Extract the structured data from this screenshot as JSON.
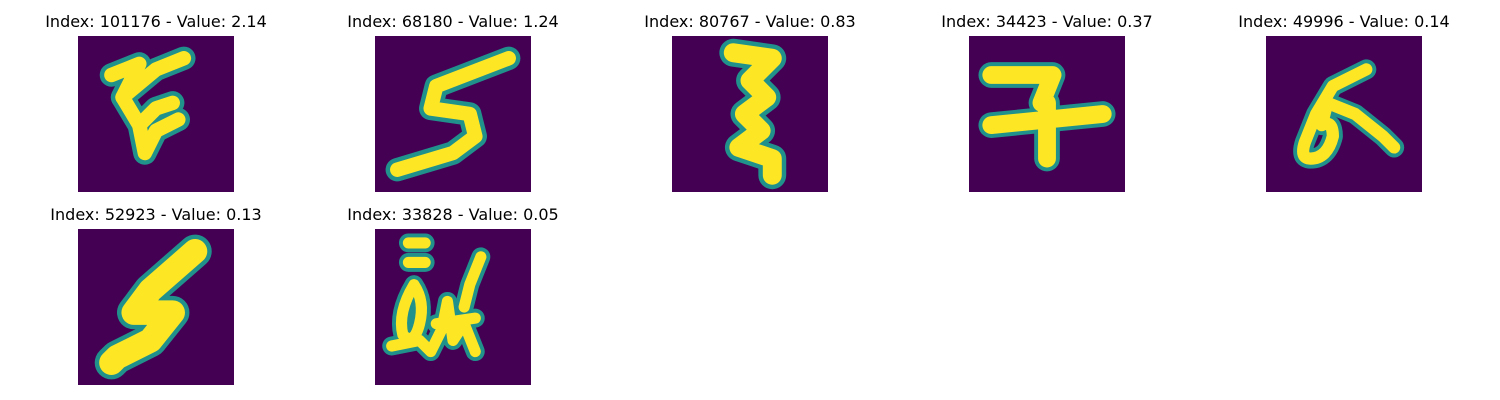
{
  "colors": {
    "background": "#440154",
    "mid": "#21918c",
    "stroke": "#fde725"
  },
  "panels": [
    {
      "title": "Index: 101176 - Value: 2.14",
      "icon": "handwritten-glyph-zig"
    },
    {
      "title": "Index: 68180 - Value: 1.24",
      "icon": "handwritten-glyph-5"
    },
    {
      "title": "Index: 80767 - Value: 0.83",
      "icon": "handwritten-glyph-zigzag"
    },
    {
      "title": "Index: 34423 - Value: 0.37",
      "icon": "handwritten-glyph-cross"
    },
    {
      "title": "Index: 49996 - Value: 0.14",
      "icon": "handwritten-glyph-loop"
    },
    {
      "title": "Index: 52923 - Value: 0.13",
      "icon": "handwritten-glyph-bolt"
    },
    {
      "title": "Index: 33828 - Value: 0.05",
      "icon": "handwritten-glyph-scribble"
    }
  ]
}
